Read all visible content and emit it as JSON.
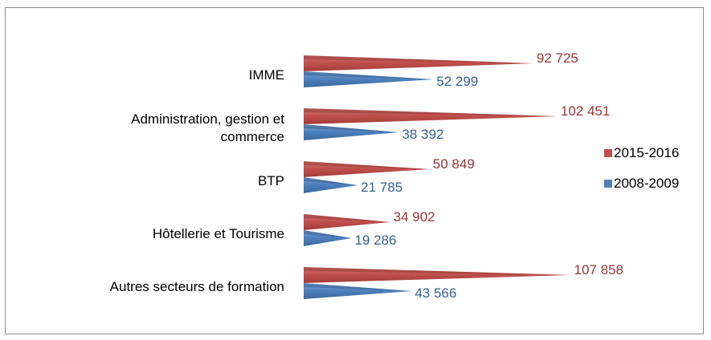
{
  "chart_data": {
    "type": "bar",
    "orientation": "horizontal",
    "title": "",
    "xlabel": "",
    "ylabel": "",
    "categories": [
      [
        "IMME"
      ],
      [
        "Administration, gestion et",
        "commerce"
      ],
      [
        "BTP"
      ],
      [
        "Hôtellerie et Tourisme"
      ],
      [
        "Autres secteurs de formation"
      ]
    ],
    "series": [
      {
        "name": "2015-2016",
        "color": "#c0504d",
        "label_color": "#953735",
        "values": [
          92725,
          102451,
          50849,
          34902,
          107858
        ],
        "value_labels": [
          "92 725",
          "102 451",
          "50 849",
          "34 902",
          "107 858"
        ]
      },
      {
        "name": "2008-2009",
        "color": "#4f81bd",
        "label_color": "#376092",
        "values": [
          52299,
          38392,
          21785,
          19286,
          43566
        ],
        "value_labels": [
          "52 299",
          "38 392",
          "21 785",
          "19 286",
          "43 566"
        ]
      }
    ],
    "legend_position": "right",
    "grid": false,
    "xlim": [
      0,
      120000
    ]
  }
}
